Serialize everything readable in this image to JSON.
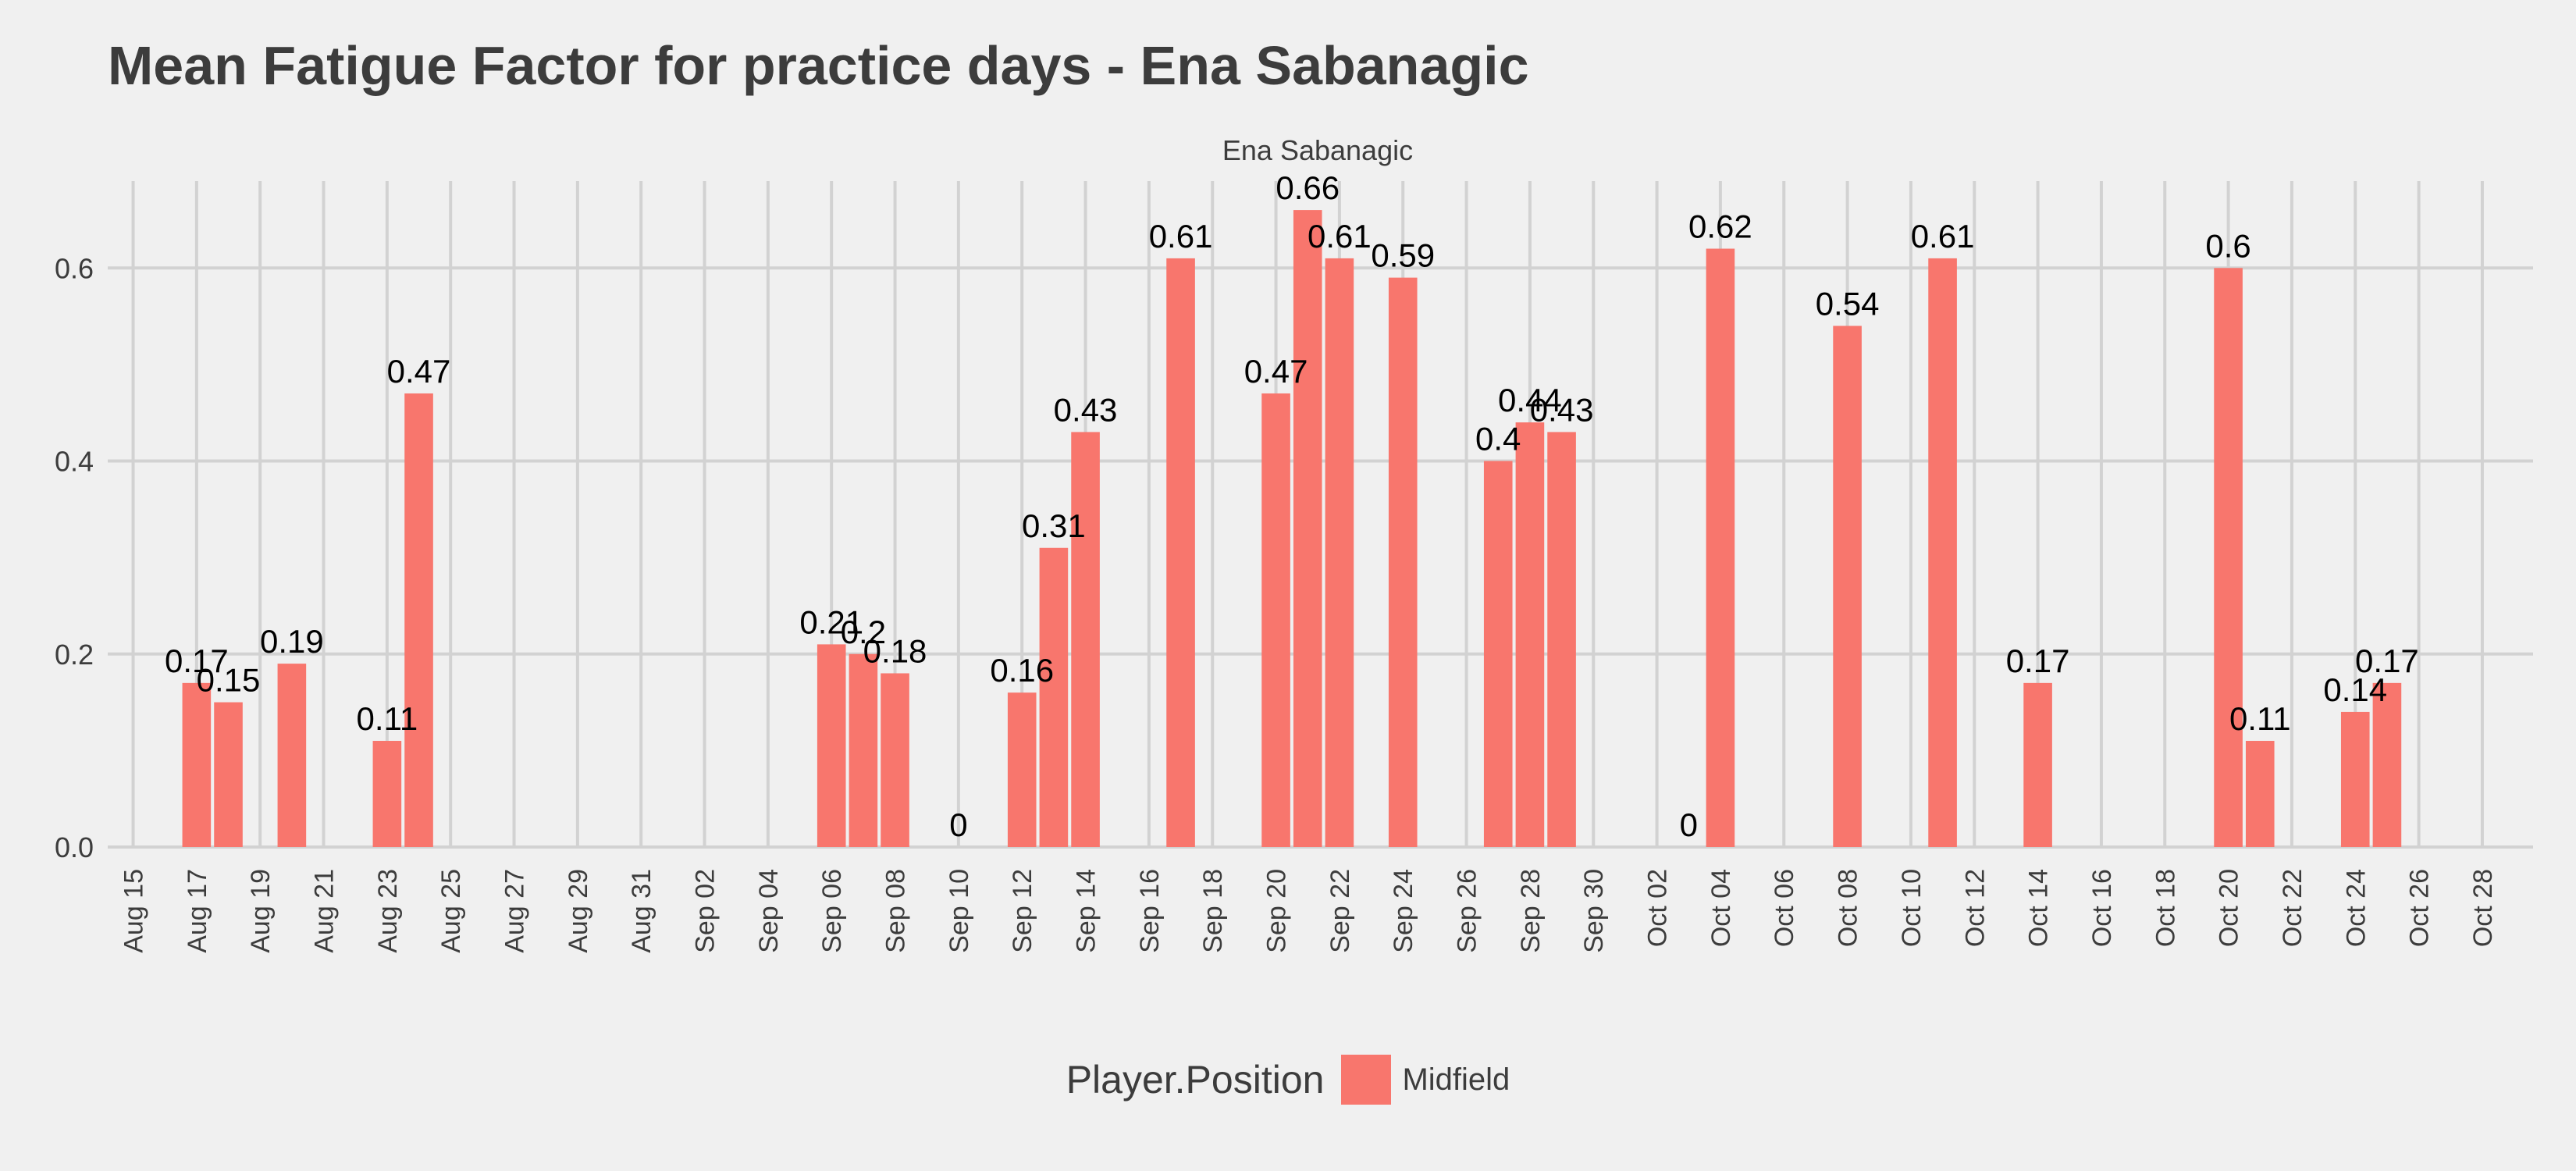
{
  "chart_data": {
    "type": "bar",
    "title": "Mean Fatigue Factor for practice days -  Ena Sabanagic",
    "facet_label": "Ena Sabanagic",
    "xlabel": "",
    "ylabel": "",
    "ylim": [
      0,
      0.69
    ],
    "y_ticks": [
      "0.0",
      "0.2",
      "0.4",
      "0.6"
    ],
    "y_tick_values": [
      0,
      0.2,
      0.4,
      0.6
    ],
    "x_range_days": [
      -0.8,
      75.6
    ],
    "x_ticks": [
      "Aug 15",
      "Aug 17",
      "Aug 19",
      "Aug 21",
      "Aug 23",
      "Aug 25",
      "Aug 27",
      "Aug 29",
      "Aug 31",
      "Sep 02",
      "Sep 04",
      "Sep 06",
      "Sep 08",
      "Sep 10",
      "Sep 12",
      "Sep 14",
      "Sep 16",
      "Sep 18",
      "Sep 20",
      "Sep 22",
      "Sep 24",
      "Sep 26",
      "Sep 28",
      "Sep 30",
      "Oct 02",
      "Oct 04",
      "Oct 06",
      "Oct 08",
      "Oct 10",
      "Oct 12",
      "Oct 14",
      "Oct 16",
      "Oct 18",
      "Oct 20",
      "Oct 22",
      "Oct 24",
      "Oct 26",
      "Oct 28"
    ],
    "legend": {
      "title": "Player.Position",
      "position": "bottom"
    },
    "series": [
      {
        "name": "Midfield",
        "color": "#f8766d",
        "points": [
          {
            "date": "Aug 17",
            "day": 2,
            "value": 0.17,
            "label": "0.17"
          },
          {
            "date": "Aug 18",
            "day": 3,
            "value": 0.15,
            "label": "0.15"
          },
          {
            "date": "Aug 20",
            "day": 5,
            "value": 0.19,
            "label": "0.19"
          },
          {
            "date": "Aug 23",
            "day": 8,
            "value": 0.11,
            "label": "0.11"
          },
          {
            "date": "Aug 24",
            "day": 9,
            "value": 0.47,
            "label": "0.47"
          },
          {
            "date": "Sep 06",
            "day": 22,
            "value": 0.21,
            "label": "0.21"
          },
          {
            "date": "Sep 07",
            "day": 23,
            "value": 0.2,
            "label": "0.2"
          },
          {
            "date": "Sep 08",
            "day": 24,
            "value": 0.18,
            "label": "0.18"
          },
          {
            "date": "Sep 10",
            "day": 26,
            "value": 0,
            "label": "0"
          },
          {
            "date": "Sep 12",
            "day": 28,
            "value": 0.16,
            "label": "0.16"
          },
          {
            "date": "Sep 13",
            "day": 29,
            "value": 0.31,
            "label": "0.31"
          },
          {
            "date": "Sep 14",
            "day": 30,
            "value": 0.43,
            "label": "0.43"
          },
          {
            "date": "Sep 17",
            "day": 33,
            "value": 0.61,
            "label": "0.61"
          },
          {
            "date": "Sep 20",
            "day": 36,
            "value": 0.47,
            "label": "0.47"
          },
          {
            "date": "Sep 21",
            "day": 37,
            "value": 0.66,
            "label": "0.66"
          },
          {
            "date": "Sep 22",
            "day": 38,
            "value": 0.61,
            "label": "0.61"
          },
          {
            "date": "Sep 24",
            "day": 40,
            "value": 0.59,
            "label": "0.59"
          },
          {
            "date": "Sep 27",
            "day": 43,
            "value": 0.4,
            "label": "0.4"
          },
          {
            "date": "Sep 28",
            "day": 44,
            "value": 0.44,
            "label": "0.44"
          },
          {
            "date": "Sep 29",
            "day": 45,
            "value": 0.43,
            "label": "0.43"
          },
          {
            "date": "Oct 03",
            "day": 49,
            "value": 0,
            "label": "0"
          },
          {
            "date": "Oct 04",
            "day": 50,
            "value": 0.62,
            "label": "0.62"
          },
          {
            "date": "Oct 08",
            "day": 54,
            "value": 0.54,
            "label": "0.54"
          },
          {
            "date": "Oct 11",
            "day": 57,
            "value": 0.61,
            "label": "0.61"
          },
          {
            "date": "Oct 14",
            "day": 60,
            "value": 0.17,
            "label": "0.17"
          },
          {
            "date": "Oct 20",
            "day": 66,
            "value": 0.6,
            "label": "0.6"
          },
          {
            "date": "Oct 21",
            "day": 67,
            "value": 0.11,
            "label": "0.11"
          },
          {
            "date": "Oct 24",
            "day": 70,
            "value": 0.14,
            "label": "0.14"
          },
          {
            "date": "Oct 25",
            "day": 71,
            "value": 0.17,
            "label": "0.17"
          }
        ]
      }
    ]
  }
}
